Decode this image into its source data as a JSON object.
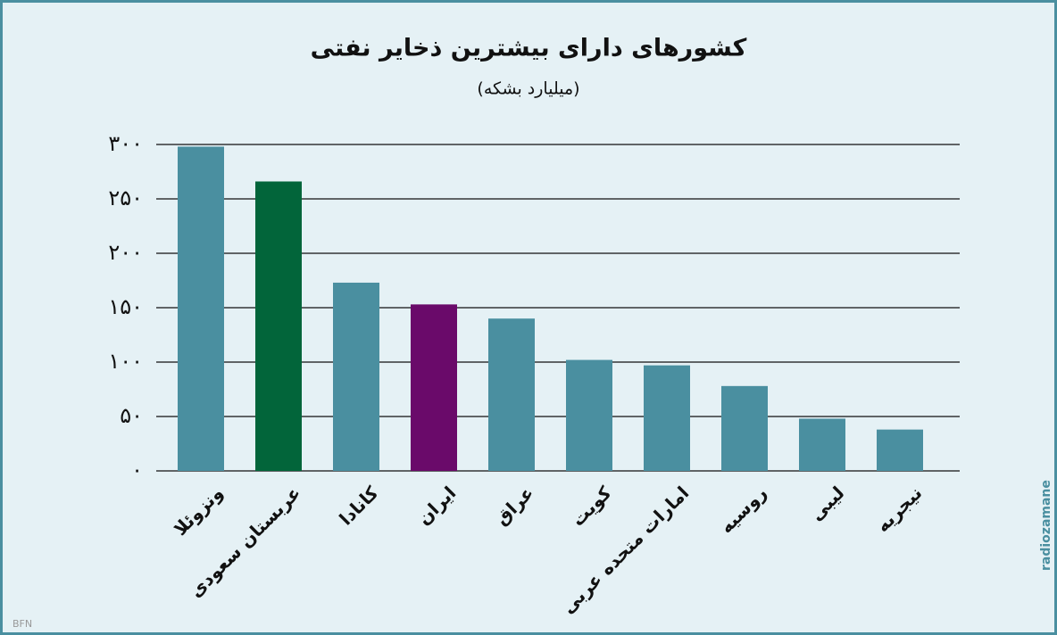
{
  "chart_data": {
    "type": "bar",
    "title": "کشورهای دارای بیشترین ذخایر نفتی",
    "subtitle": "(میلیارد بشکه)",
    "categories": [
      "ونزوئلا",
      "عربستان سعودی",
      "کانادا",
      "ایران",
      "عراق",
      "کویت",
      "امارات متحده عربی",
      "روسیه",
      "لیبی",
      "نیجریه"
    ],
    "values": [
      298,
      266,
      173,
      153,
      140,
      102,
      97,
      78,
      48,
      38
    ],
    "colors": [
      "#4a8fa0",
      "#02653a",
      "#4a8fa0",
      "#6a0a6a",
      "#4a8fa0",
      "#4a8fa0",
      "#4a8fa0",
      "#4a8fa0",
      "#4a8fa0",
      "#4a8fa0"
    ],
    "ylim": [
      0,
      300
    ],
    "yticks": [
      {
        "value": 0,
        "label": "۰"
      },
      {
        "value": 50,
        "label": "۵۰"
      },
      {
        "value": 100,
        "label": "۱۰۰"
      },
      {
        "value": 150,
        "label": "۱۵۰"
      },
      {
        "value": 200,
        "label": "۲۰۰"
      },
      {
        "value": 250,
        "label": "۲۵۰"
      },
      {
        "value": 300,
        "label": "۳۰۰"
      }
    ],
    "grid": true,
    "source": "BFN",
    "brand": "radiozamane"
  }
}
